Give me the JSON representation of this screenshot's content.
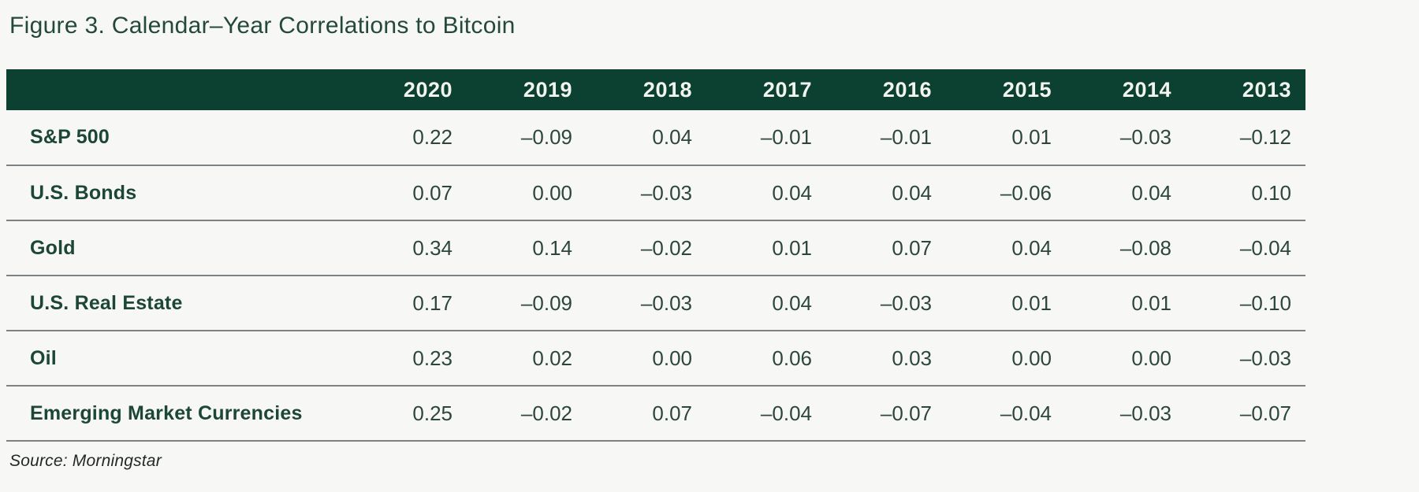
{
  "title": "Figure 3. Calendar–Year Correlations to Bitcoin",
  "source": "Source: Morningstar",
  "colors": {
    "page_bg": "#f7f8f6",
    "header_bg": "#0c4030",
    "header_text": "#f2f5ef",
    "label_text": "#1c4637",
    "value_text": "#2d463b",
    "title_text": "#24493a",
    "divider": "#7d8385"
  },
  "chart_data": {
    "type": "table",
    "title": "Figure 3. Calendar–Year Correlations to Bitcoin",
    "columns": [
      "2020",
      "2019",
      "2018",
      "2017",
      "2016",
      "2015",
      "2014",
      "2013"
    ],
    "rows": [
      {
        "label": "S&P 500",
        "values": [
          0.22,
          -0.09,
          0.04,
          -0.01,
          -0.01,
          0.01,
          -0.03,
          -0.12
        ]
      },
      {
        "label": "U.S. Bonds",
        "values": [
          0.07,
          0.0,
          -0.03,
          0.04,
          0.04,
          -0.06,
          0.04,
          0.1
        ]
      },
      {
        "label": "Gold",
        "values": [
          0.34,
          0.14,
          -0.02,
          0.01,
          0.07,
          0.04,
          -0.08,
          -0.04
        ]
      },
      {
        "label": "U.S. Real Estate",
        "values": [
          0.17,
          -0.09,
          -0.03,
          0.04,
          -0.03,
          0.01,
          0.01,
          -0.1
        ]
      },
      {
        "label": "Oil",
        "values": [
          0.23,
          0.02,
          0.0,
          0.06,
          0.03,
          0.0,
          0.0,
          -0.03
        ]
      },
      {
        "label": "Emerging Market Currencies",
        "values": [
          0.25,
          -0.02,
          0.07,
          -0.04,
          -0.07,
          -0.04,
          -0.03,
          -0.07
        ]
      }
    ],
    "source": "Source: Morningstar",
    "layout": {
      "header_align": "right",
      "values_align": "right",
      "grid": "horizontal-dividers"
    }
  }
}
